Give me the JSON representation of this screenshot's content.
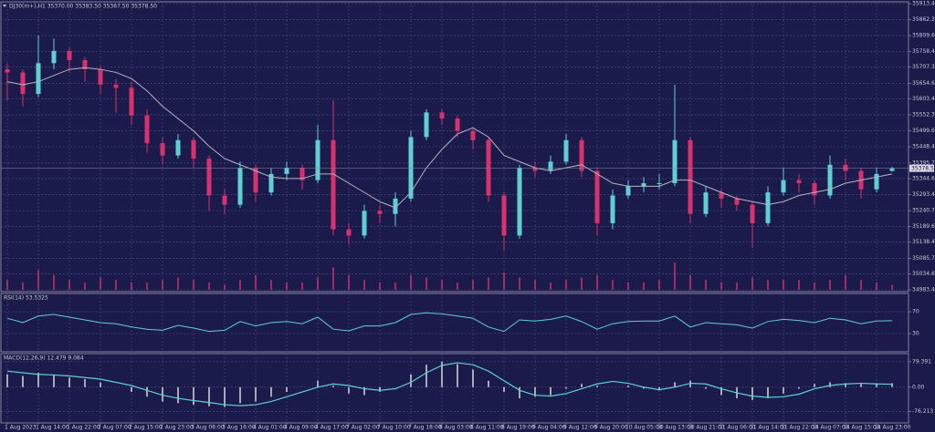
{
  "chart_data": [
    {
      "type": "candlestick",
      "title": "DJ30(m+),H1  35370.00 35383.50 35367.50 35378.50",
      "categories": [
        "1 Aug 2023",
        null,
        "1 Aug 14:00",
        null,
        "1 Aug 22:00",
        null,
        "2 Aug 07:00",
        null,
        "2 Aug 15:00",
        null,
        "2 Aug 23:00",
        null,
        "3 Aug 08:00",
        null,
        "3 Aug 16:00",
        null,
        "4 Aug 01:00",
        null,
        "4 Aug 09:00",
        null,
        "4 Aug 17:00",
        null,
        "7 Aug 02:00",
        null,
        "7 Aug 10:00",
        null,
        "7 Aug 18:00",
        null,
        "8 Aug 03:00",
        null,
        "8 Aug 11:00",
        null,
        "8 Aug 19:00",
        null,
        "9 Aug 04:00",
        null,
        "9 Aug 12:00",
        null,
        "9 Aug 20:00",
        null,
        "10 Aug 05:00",
        null,
        "10 Aug 13:00",
        null,
        "10 Aug 21:00",
        null,
        "11 Aug 06:00",
        null,
        "11 Aug 14:00",
        null,
        "11 Aug 22:00",
        null,
        "14 Aug 07:00",
        null,
        "14 Aug 15:00",
        null,
        "14 Aug 23:00",
        null
      ],
      "open": [
        35700,
        35690,
        35620,
        35720,
        35760,
        35730,
        35700,
        35650,
        35640,
        35550,
        35460,
        35420,
        35470,
        35410,
        35290,
        35260,
        35380,
        35300,
        35360,
        35380,
        35340,
        35470,
        35180,
        35160,
        35240,
        35230,
        35280,
        35480,
        35560,
        35540,
        35500,
        35470,
        35290,
        35160,
        35380,
        35370,
        35400,
        35470,
        35370,
        35200,
        35290,
        35320,
        35330,
        35330,
        35470,
        35230,
        35300,
        35280,
        35260,
        35200,
        35300,
        35340,
        35330,
        35290,
        35390,
        35370,
        35310,
        35370
      ],
      "high": [
        35720,
        35700,
        35810,
        35800,
        35770,
        35740,
        35710,
        35670,
        35660,
        35570,
        35480,
        35490,
        35480,
        35420,
        35310,
        35400,
        35390,
        35380,
        35400,
        35390,
        35520,
        35600,
        35200,
        35260,
        35260,
        35300,
        35500,
        35570,
        35570,
        35550,
        35510,
        35480,
        35300,
        35390,
        35400,
        35420,
        35490,
        35480,
        35380,
        35310,
        35340,
        35350,
        35360,
        35650,
        35480,
        35320,
        35310,
        35290,
        35270,
        35320,
        35380,
        35360,
        35340,
        35420,
        35410,
        35380,
        35380,
        35383.5
      ],
      "low": [
        35600,
        35580,
        35610,
        35700,
        35690,
        35660,
        35620,
        35560,
        35520,
        35430,
        35390,
        35410,
        35380,
        35240,
        35230,
        35250,
        35270,
        35290,
        35340,
        35310,
        35330,
        35160,
        35130,
        35150,
        35200,
        35190,
        35270,
        35470,
        35520,
        35480,
        35440,
        35270,
        35110,
        35150,
        35350,
        35360,
        35390,
        35350,
        35160,
        35180,
        35280,
        35300,
        35310,
        35320,
        35200,
        35220,
        35250,
        35240,
        35120,
        35190,
        35290,
        35300,
        35260,
        35280,
        35340,
        35280,
        35300,
        35367.5
      ],
      "close": [
        35690,
        35620,
        35720,
        35760,
        35730,
        35700,
        35650,
        35640,
        35550,
        35460,
        35420,
        35470,
        35410,
        35290,
        35260,
        35380,
        35300,
        35360,
        35380,
        35340,
        35470,
        35180,
        35160,
        35240,
        35230,
        35280,
        35480,
        35560,
        35540,
        35500,
        35470,
        35290,
        35160,
        35380,
        35370,
        35400,
        35470,
        35370,
        35200,
        35290,
        35320,
        35330,
        35330,
        35470,
        35230,
        35300,
        35280,
        35260,
        35200,
        35300,
        35340,
        35330,
        35290,
        35390,
        35370,
        35310,
        35360,
        35378.5
      ],
      "ma": [
        35660,
        35650,
        35660,
        35680,
        35700,
        35705,
        35700,
        35690,
        35670,
        35630,
        35580,
        35540,
        35500,
        35450,
        35410,
        35390,
        35370,
        35350,
        35345,
        35345,
        35360,
        35360,
        35330,
        35300,
        35270,
        35250,
        35300,
        35380,
        35440,
        35490,
        35510,
        35480,
        35420,
        35400,
        35380,
        35370,
        35380,
        35390,
        35360,
        35330,
        35320,
        35320,
        35320,
        35340,
        35340,
        35320,
        35300,
        35280,
        35270,
        35260,
        35270,
        35290,
        35300,
        35310,
        35330,
        35340,
        35350,
        35360
      ],
      "volume": [
        40,
        30,
        80,
        60,
        40,
        30,
        50,
        40,
        30,
        30,
        40,
        50,
        40,
        30,
        20,
        40,
        60,
        40,
        30,
        30,
        50,
        90,
        60,
        40,
        30,
        30,
        60,
        50,
        40,
        30,
        40,
        50,
        70,
        50,
        40,
        30,
        40,
        50,
        60,
        40,
        30,
        30,
        40,
        110,
        60,
        40,
        30,
        30,
        50,
        40,
        40,
        40,
        30,
        40,
        60,
        40,
        30,
        20
      ],
      "up_color": "#5fcfd3",
      "down_color": "#d8326e",
      "ma_color": "#b4b4c4",
      "volume_color": "#c0306a",
      "ylim": [
        34983.45,
        35913.45
      ],
      "yticks": [
        34983.45,
        {
          "value": 35034.6,
          "label": "35034.60"
        },
        35085.75,
        35138.45,
        {
          "value": 35189.6,
          "label": "35189.60"
        },
        35240.75,
        35293.45,
        {
          "value": 35344.6,
          "label": "35344.60"
        },
        35395.75,
        35448.45,
        {
          "value": 35499.6,
          "label": "35499.60"
        },
        {
          "value": 35552.3,
          "label": "35552.30"
        },
        35603.45,
        {
          "value": 35654.6,
          "label": "35654.60"
        },
        {
          "value": 35707.3,
          "label": "35707.30"
        },
        35758.45,
        {
          "value": 35809.6,
          "label": "35809.60"
        },
        {
          "value": 35862.3,
          "label": "35862.30"
        },
        35913.45
      ],
      "last_price_label": {
        "value": 35378.5,
        "label": "35378.50"
      },
      "grid": true
    },
    {
      "type": "line",
      "title": "RSI(14) 53.5325",
      "values": [
        58,
        50,
        62,
        65,
        60,
        55,
        50,
        48,
        42,
        38,
        36,
        45,
        40,
        34,
        36,
        52,
        44,
        50,
        52,
        48,
        60,
        38,
        35,
        44,
        44,
        50,
        65,
        68,
        66,
        62,
        58,
        42,
        34,
        55,
        53,
        56,
        62,
        52,
        38,
        48,
        52,
        53,
        53,
        62,
        42,
        50,
        48,
        46,
        40,
        52,
        56,
        54,
        50,
        58,
        55,
        48,
        53,
        53.5
      ],
      "color": "#5fcfd3",
      "ylim": [
        0,
        100
      ],
      "yticks": [
        30,
        70
      ],
      "grid": true
    },
    {
      "type": "macd",
      "title": "MACD(12,26,9) 12.479 9.084",
      "histogram": [
        40,
        35,
        45,
        40,
        30,
        25,
        15,
        0,
        -15,
        -30,
        -45,
        -50,
        -55,
        -60,
        -62,
        -50,
        -45,
        -30,
        -15,
        0,
        20,
        5,
        -20,
        -25,
        -15,
        0,
        40,
        70,
        80,
        72,
        55,
        20,
        -15,
        -35,
        -30,
        -25,
        -5,
        10,
        5,
        0,
        5,
        -5,
        -10,
        15,
        20,
        -5,
        -25,
        -35,
        -40,
        -35,
        -20,
        -5,
        10,
        15,
        12,
        10,
        12,
        12.479
      ],
      "signal": [
        50,
        45,
        40,
        38,
        35,
        30,
        25,
        15,
        5,
        -10,
        -25,
        -35,
        -42,
        -48,
        -55,
        -58,
        -55,
        -45,
        -30,
        -15,
        0,
        10,
        5,
        -5,
        -10,
        -5,
        15,
        45,
        68,
        76,
        70,
        50,
        20,
        -10,
        -25,
        -28,
        -20,
        -5,
        10,
        18,
        12,
        0,
        -8,
        0,
        12,
        10,
        -5,
        -18,
        -28,
        -32,
        -30,
        -22,
        -5,
        5,
        10,
        12,
        10,
        9.084
      ],
      "histogram_color": "#a8a8b8",
      "signal_color": "#5fcfd3",
      "ylim": [
        -106,
        99
      ],
      "yticks": [
        -76.213,
        {
          "value": 0,
          "label": "0.00"
        },
        79.391
      ],
      "grid": true
    }
  ]
}
